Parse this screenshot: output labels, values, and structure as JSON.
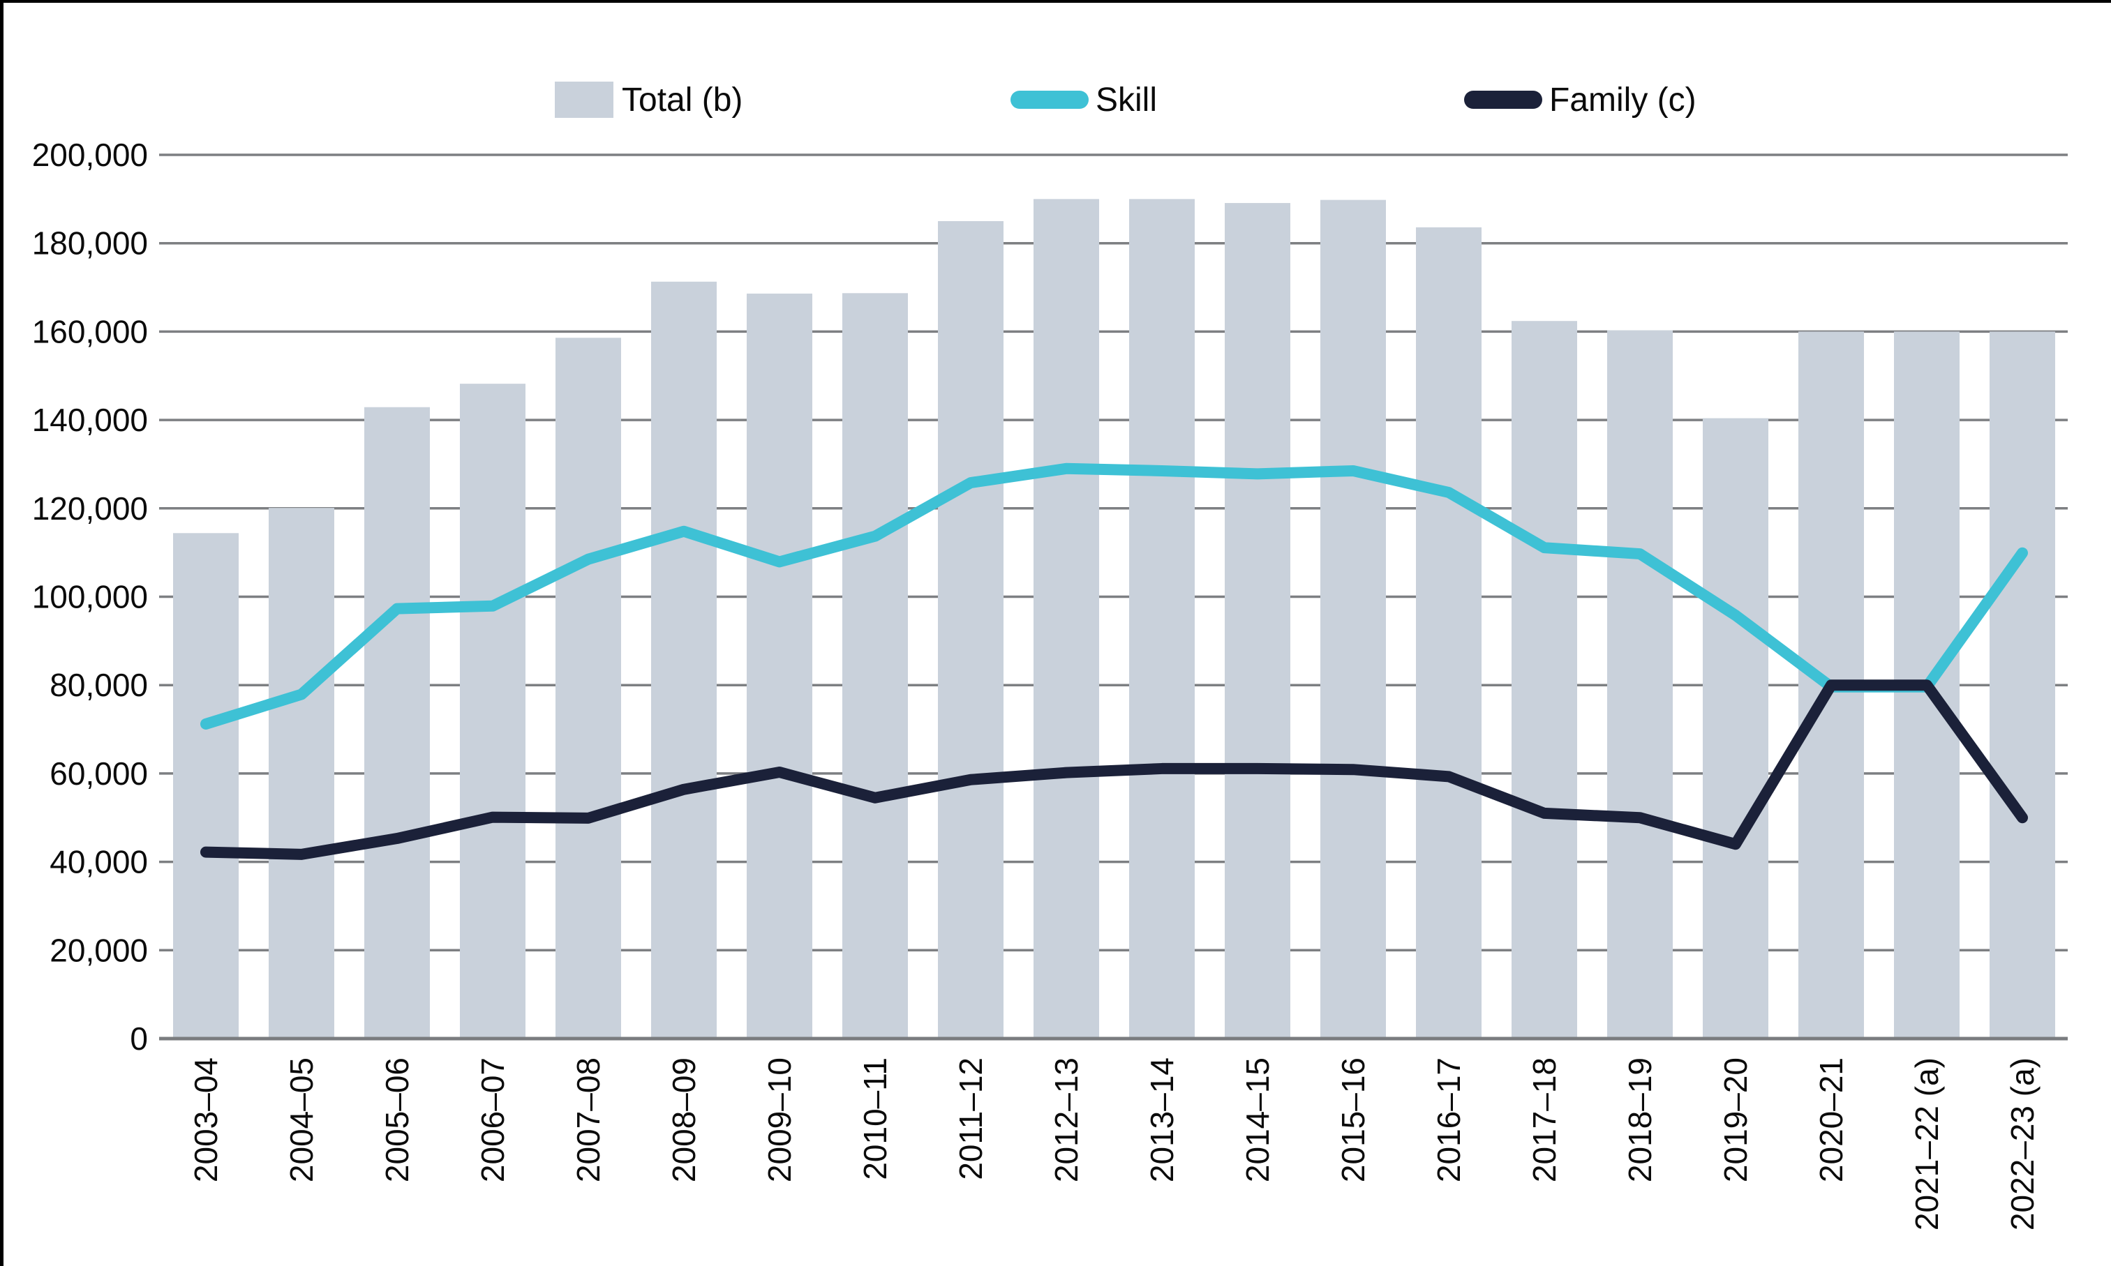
{
  "chart_data": {
    "type": "combo",
    "title": "",
    "categories": [
      "2003–04",
      "2004–05",
      "2005–06",
      "2006–07",
      "2007–08",
      "2008–09",
      "2009–10",
      "2010–11",
      "2011–12",
      "2012–13",
      "2013–14",
      "2014–15",
      "2015–16",
      "2016–17",
      "2017–18",
      "2018–19",
      "2019–20",
      "2020–21",
      "2021–22 (a)",
      "2022–23 (a)"
    ],
    "series": [
      {
        "name": "Total (b)",
        "kind": "bar",
        "color": "#c9d1db",
        "values": [
          114400,
          120100,
          142900,
          148200,
          158600,
          171300,
          168600,
          168700,
          185000,
          190000,
          190000,
          189100,
          189800,
          183600,
          162400,
          160300,
          140400,
          160000,
          160000,
          160000
        ]
      },
      {
        "name": "Skill",
        "kind": "line",
        "color": "#3ec1d5",
        "values": [
          71200,
          77900,
          97300,
          97900,
          108500,
          114800,
          107900,
          113700,
          125800,
          129000,
          128500,
          127800,
          128500,
          123600,
          111100,
          109700,
          95800,
          79600,
          79600,
          109900
        ]
      },
      {
        "name": "Family (c)",
        "kind": "line",
        "color": "#1b2139",
        "values": [
          42200,
          41700,
          45300,
          50100,
          49900,
          56400,
          60300,
          54500,
          58600,
          60200,
          61100,
          61100,
          60900,
          59300,
          51000,
          50000,
          44000,
          80000,
          80000,
          50000
        ]
      }
    ],
    "ylim": [
      0,
      200000
    ],
    "ytick_interval": 20000,
    "ytick_labels": [
      "0",
      "20,000",
      "40,000",
      "60,000",
      "80,000",
      "100,000",
      "120,000",
      "140,000",
      "160,000",
      "180,000",
      "200,000"
    ],
    "xlabel": "",
    "ylabel": "",
    "grid": "horizontal",
    "legend_position": "top",
    "gridline_color": "#7d7f82",
    "axis_color": "#7a7c7f",
    "text_color": "#0b0b0b"
  }
}
